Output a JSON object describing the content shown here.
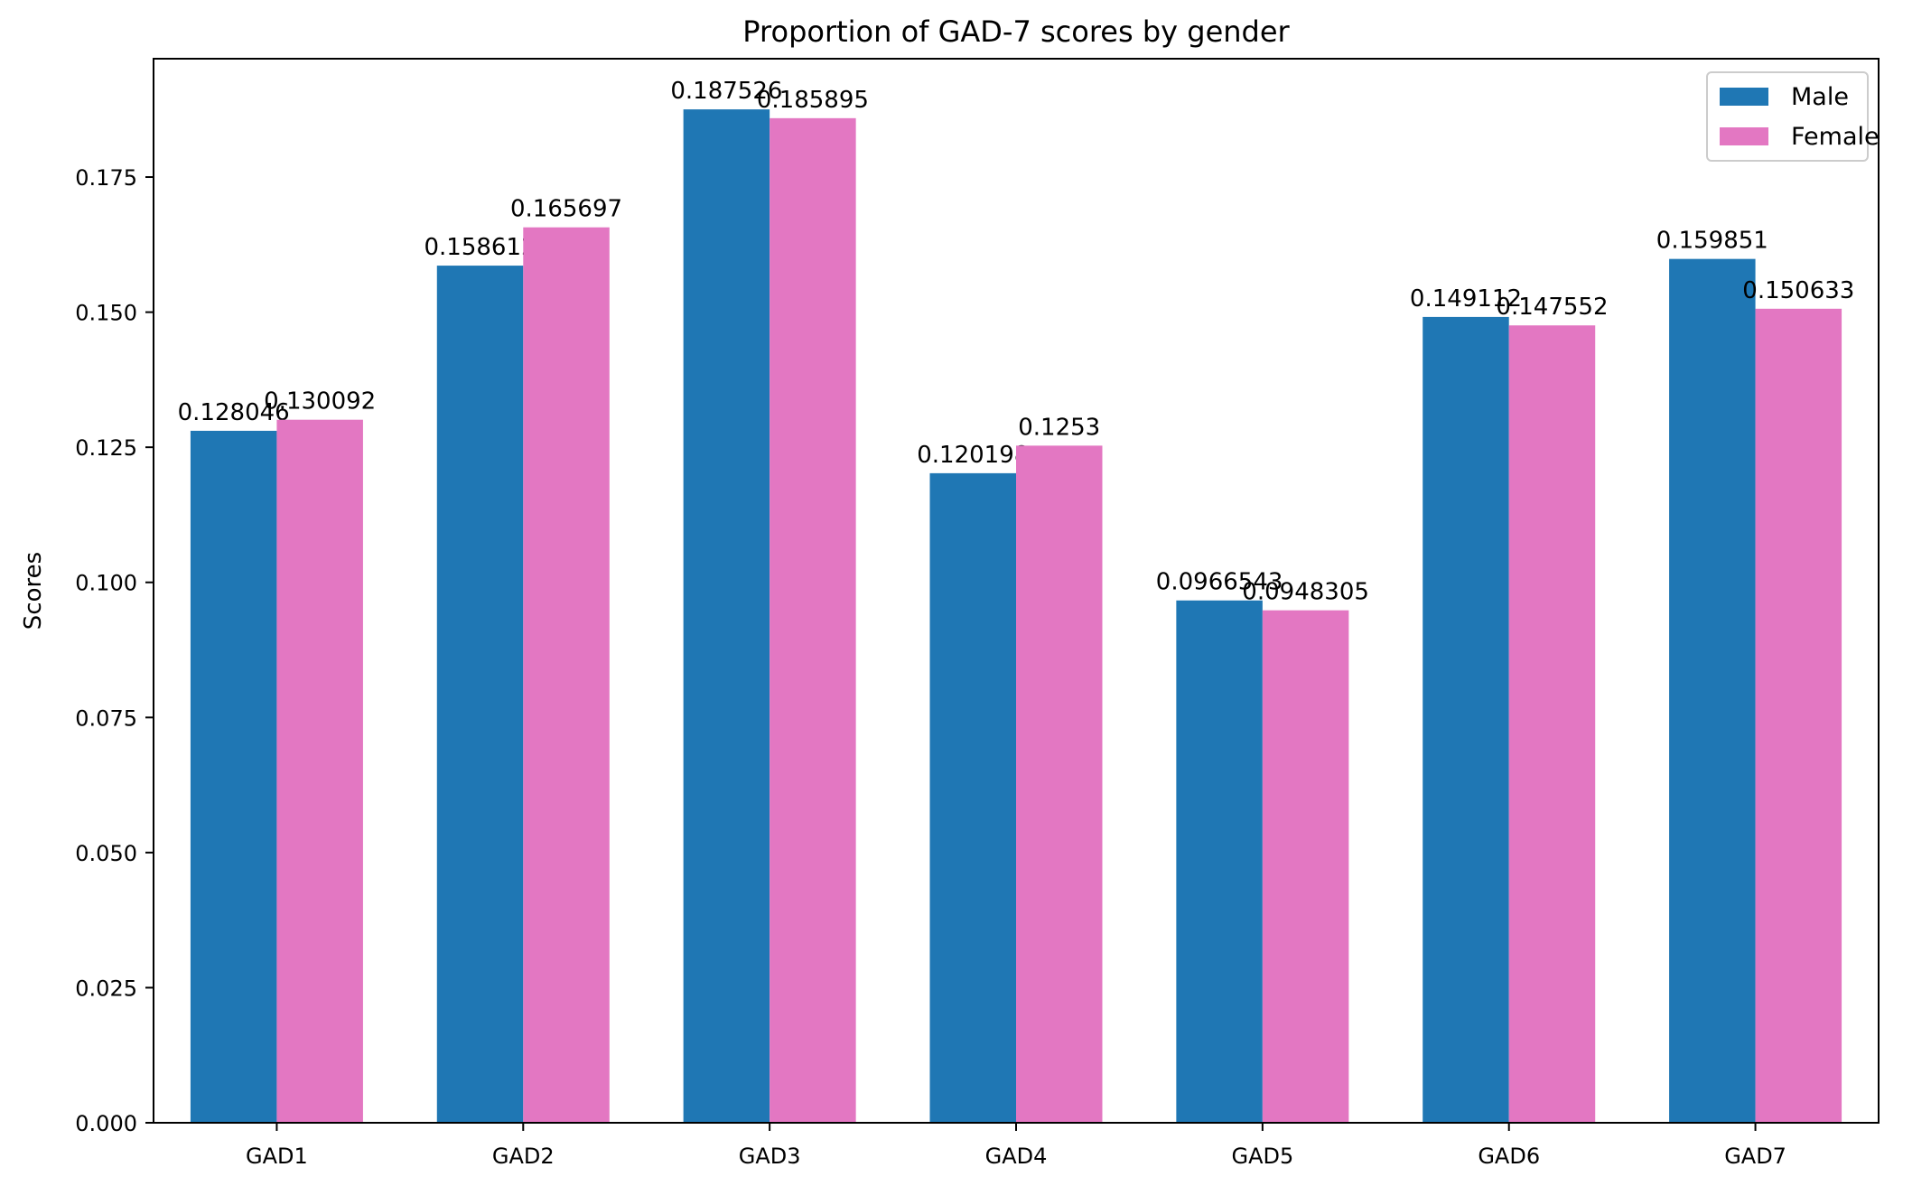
{
  "chart_data": {
    "type": "bar",
    "title": "Proportion of GAD-7 scores by gender",
    "xlabel": "",
    "ylabel": "Scores",
    "categories": [
      "GAD1",
      "GAD2",
      "GAD3",
      "GAD4",
      "GAD5",
      "GAD6",
      "GAD7"
    ],
    "series": [
      {
        "name": "Male",
        "color": "#1f77b4",
        "values": [
          0.128046,
          0.158612,
          0.187526,
          0.120198,
          0.0966543,
          0.149112,
          0.159851
        ],
        "labels": [
          "0.128046",
          "0.158612",
          "0.187526",
          "0.120198",
          "0.0966543",
          "0.149112",
          "0.159851"
        ]
      },
      {
        "name": "Female",
        "color": "#e377c2",
        "values": [
          0.130092,
          0.165697,
          0.185895,
          0.1253,
          0.0948305,
          0.147552,
          0.150633
        ],
        "labels": [
          "0.130092",
          "0.165697",
          "0.185895",
          "0.1253",
          "0.0948305",
          "0.147552",
          "0.150633"
        ]
      }
    ],
    "ylim": [
      0,
      0.1969
    ],
    "yticks": [
      0.0,
      0.025,
      0.05,
      0.075,
      0.1,
      0.125,
      0.15,
      0.175
    ],
    "ytick_labels": [
      "0.000",
      "0.025",
      "0.050",
      "0.075",
      "0.100",
      "0.125",
      "0.150",
      "0.175"
    ],
    "grid": false,
    "legend_position": "top-right"
  }
}
